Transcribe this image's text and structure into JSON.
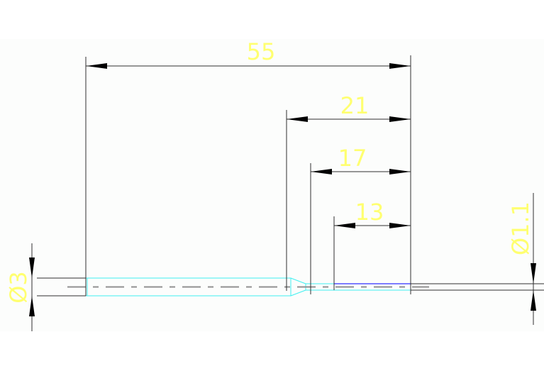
{
  "drawing": {
    "background": "#fcfdfc",
    "colors": {
      "dimension_text": "#ffff70",
      "part_outline": "#40f0f0",
      "highlight_edge": "#3030ff",
      "lines": "#303030",
      "centerline": "#909090"
    },
    "dimensions": {
      "length_total": "55",
      "length_21": "21",
      "length_17": "17",
      "length_13": "13",
      "diameter_large": "Ø3",
      "diameter_small": "Ø1.1"
    }
  }
}
